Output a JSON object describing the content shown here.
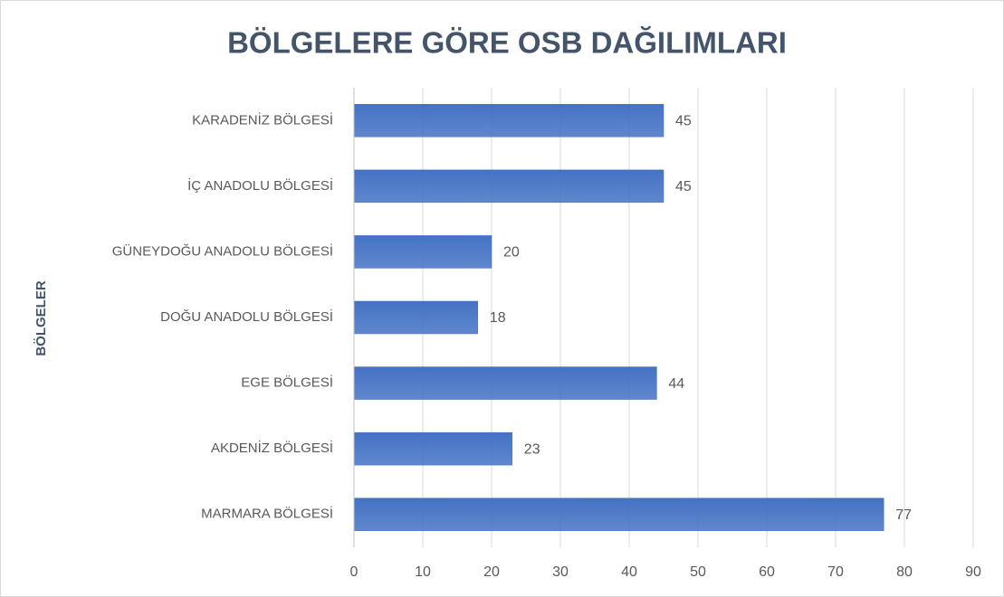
{
  "chart_data": {
    "type": "bar",
    "orientation": "horizontal",
    "title": "BÖLGELERE GÖRE OSB DAĞILIMLARI",
    "y_label": "BÖLGELER",
    "categories": [
      "KARADENİZ BÖLGESİ",
      "İÇ ANADOLU BÖLGESİ",
      "GÜNEYDOĞU ANADOLU BÖLGESİ",
      "DOĞU ANADOLU BÖLGESİ",
      "EGE BÖLGESİ",
      "AKDENİZ BÖLGESİ",
      "MARMARA BÖLGESİ"
    ],
    "values": [
      45,
      45,
      20,
      18,
      44,
      23,
      77
    ],
    "color": "#4472c4",
    "xlim": [
      0,
      90
    ],
    "xticks": [
      0,
      10,
      20,
      30,
      40,
      50,
      60,
      70,
      80,
      90
    ],
    "grid": true
  }
}
